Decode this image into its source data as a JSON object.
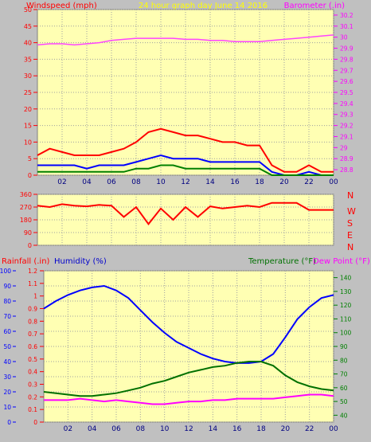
{
  "page": {
    "background": "#c0c0c0",
    "plot_bg": "#ffffb3"
  },
  "header": {
    "left_label": "Windspeed (mph)",
    "center_label": "24 hour graph day   June 14 2016",
    "right_label": "Barometer (.in)"
  },
  "middle": {
    "labels": {
      "n": "N",
      "w": "W",
      "s": "S",
      "e": "E"
    }
  },
  "bottom_header": {
    "rainfall": "Rainfall (.in)",
    "humidity": "Humidity (%)",
    "temperature": "Temperature (°F)",
    "dewpoint": "Dew Point (°F)"
  },
  "chart_data": [
    {
      "type": "line",
      "name": "wind-and-barometer",
      "x_ticks": [
        "02",
        "04",
        "06",
        "08",
        "10",
        "12",
        "14",
        "16",
        "18",
        "20",
        "22",
        "00"
      ],
      "y_left": {
        "ticks": [
          "0",
          "5",
          "10",
          "15",
          "20",
          "25",
          "30",
          "35",
          "40",
          "45",
          "50"
        ],
        "ylim": [
          0,
          50
        ],
        "color": "#ff0000"
      },
      "y_right": {
        "ticks": [
          "28.8",
          "28.9",
          "29",
          "29.1",
          "29.2",
          "29.3",
          "29.4",
          "29.5",
          "29.6",
          "29.7",
          "29.8",
          "29.9",
          "30",
          "30.1",
          "30.2"
        ],
        "ylim": [
          28.75,
          30.25
        ],
        "color": "#ff00ff"
      },
      "series": [
        {
          "key": "barometer",
          "color": "#ff44ff",
          "x": [
            0,
            1,
            2,
            3,
            4,
            5,
            6,
            7,
            8,
            9,
            10,
            11,
            12,
            13,
            14,
            15,
            16,
            17,
            18,
            19,
            20,
            21,
            22,
            23,
            24
          ],
          "values": [
            29.93,
            29.94,
            29.94,
            29.93,
            29.94,
            29.95,
            29.97,
            29.98,
            29.99,
            29.99,
            29.99,
            29.99,
            29.98,
            29.98,
            29.97,
            29.97,
            29.96,
            29.96,
            29.96,
            29.97,
            29.98,
            29.99,
            30.0,
            30.01,
            30.02
          ]
        },
        {
          "key": "gust",
          "color": "#ff0000",
          "x": [
            0,
            1,
            2,
            3,
            4,
            5,
            6,
            7,
            8,
            9,
            10,
            11,
            12,
            13,
            14,
            15,
            16,
            17,
            18,
            19,
            20,
            21,
            22,
            23,
            24
          ],
          "values": [
            6,
            8,
            7,
            6,
            6,
            6,
            7,
            8,
            10,
            13,
            14,
            13,
            12,
            12,
            11,
            10,
            10,
            9,
            9,
            3,
            1,
            1,
            3,
            1,
            1
          ]
        },
        {
          "key": "windspeed",
          "color": "#0000ff",
          "x": [
            0,
            1,
            2,
            3,
            4,
            5,
            6,
            7,
            8,
            9,
            10,
            11,
            12,
            13,
            14,
            15,
            16,
            17,
            18,
            19,
            20,
            21,
            22,
            23,
            24
          ],
          "values": [
            3,
            3,
            3,
            3,
            2,
            3,
            3,
            3,
            4,
            5,
            6,
            5,
            5,
            5,
            4,
            4,
            4,
            4,
            4,
            1,
            0,
            0,
            1,
            0,
            0
          ]
        },
        {
          "key": "average",
          "color": "#008000",
          "x": [
            0,
            1,
            2,
            3,
            4,
            5,
            6,
            7,
            8,
            9,
            10,
            11,
            12,
            13,
            14,
            15,
            16,
            17,
            18,
            19,
            20,
            21,
            22,
            23,
            24
          ],
          "values": [
            1,
            1,
            1,
            1,
            1,
            1,
            1,
            1,
            2,
            2,
            3,
            3,
            2,
            2,
            2,
            2,
            2,
            2,
            2,
            0,
            0,
            0,
            0,
            0,
            0
          ]
        }
      ]
    },
    {
      "type": "line",
      "name": "wind-direction",
      "x_ticks": [
        "02",
        "04",
        "06",
        "08",
        "10",
        "12",
        "14",
        "16",
        "18",
        "20",
        "22",
        "00"
      ],
      "y_left": {
        "ticks": [
          "0",
          "90",
          "180",
          "270",
          "360"
        ],
        "ylim": [
          0,
          360
        ],
        "color": "#ff0000"
      },
      "series": [
        {
          "key": "direction",
          "color": "#ff0000",
          "x": [
            0,
            1,
            2,
            3,
            4,
            5,
            6,
            7,
            8,
            9,
            10,
            11,
            12,
            13,
            14,
            15,
            16,
            17,
            18,
            19,
            20,
            21,
            22,
            23,
            24
          ],
          "values": [
            280,
            270,
            290,
            280,
            275,
            285,
            280,
            200,
            270,
            150,
            260,
            180,
            270,
            200,
            275,
            260,
            270,
            280,
            270,
            300,
            300,
            300,
            250,
            250,
            250
          ]
        }
      ]
    },
    {
      "type": "line",
      "name": "humidity-temperature",
      "x_ticks": [
        "02",
        "04",
        "06",
        "08",
        "10",
        "12",
        "14",
        "16",
        "18",
        "20",
        "22",
        "00"
      ],
      "y_left_rain": {
        "ticks": [
          "0",
          "0.1",
          "0.2",
          "0.3",
          "0.4",
          "0.5",
          "0.6",
          "0.7",
          "0.8",
          "0.9",
          "1",
          "1.1",
          "1.2"
        ],
        "ylim": [
          0,
          1.2
        ],
        "color": "#ff0000"
      },
      "y_left_humidity": {
        "ticks": [
          "0",
          "10",
          "20",
          "30",
          "40",
          "50",
          "60",
          "70",
          "80",
          "90",
          "100"
        ],
        "ylim": [
          0,
          100
        ],
        "color": "#0000ff"
      },
      "y_right": {
        "ticks": [
          "40",
          "50",
          "60",
          "70",
          "80",
          "90",
          "100",
          "110",
          "120",
          "130",
          "140"
        ],
        "ylim": [
          35,
          145
        ],
        "color": "#008000"
      },
      "series": [
        {
          "key": "humidity",
          "color": "#0000ff",
          "x": [
            0,
            1,
            2,
            3,
            4,
            5,
            6,
            7,
            8,
            9,
            10,
            11,
            12,
            13,
            14,
            15,
            16,
            17,
            18,
            19,
            20,
            21,
            22,
            23,
            24
          ],
          "values": [
            75,
            80,
            84,
            87,
            89,
            90,
            87,
            82,
            74,
            66,
            59,
            53,
            49,
            45,
            42,
            40,
            39,
            39,
            40,
            45,
            56,
            68,
            76,
            82,
            84
          ]
        },
        {
          "key": "temperature",
          "color": "#007000",
          "x": [
            0,
            1,
            2,
            3,
            4,
            5,
            6,
            7,
            8,
            9,
            10,
            11,
            12,
            13,
            14,
            15,
            16,
            17,
            18,
            19,
            20,
            21,
            22,
            23,
            24
          ],
          "values": [
            57,
            56,
            55,
            54,
            54,
            55,
            56,
            58,
            60,
            63,
            65,
            68,
            71,
            73,
            75,
            76,
            78,
            79,
            79,
            76,
            69,
            64,
            61,
            59,
            58
          ]
        },
        {
          "key": "dewpoint",
          "color": "#ff00ff",
          "x": [
            0,
            1,
            2,
            3,
            4,
            5,
            6,
            7,
            8,
            9,
            10,
            11,
            12,
            13,
            14,
            15,
            16,
            17,
            18,
            19,
            20,
            21,
            22,
            23,
            24
          ],
          "values": [
            51,
            51,
            51,
            52,
            51,
            50,
            51,
            50,
            49,
            48,
            48,
            49,
            50,
            50,
            51,
            51,
            52,
            52,
            52,
            52,
            53,
            54,
            55,
            55,
            54
          ]
        }
      ]
    }
  ]
}
